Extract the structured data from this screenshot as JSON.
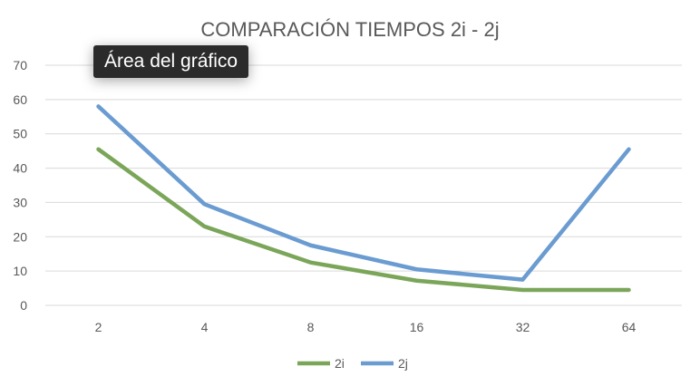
{
  "tooltip": {
    "text": "Área del gráfico"
  },
  "chart_data": {
    "type": "line",
    "title": "COMPARACIÓN TIEMPOS 2i - 2j",
    "categories": [
      "2",
      "4",
      "8",
      "16",
      "32",
      "64"
    ],
    "series": [
      {
        "name": "2i",
        "color": "#7ba65a",
        "values": [
          45.5,
          23,
          12.5,
          7.2,
          4.5,
          4.5
        ]
      },
      {
        "name": "2j",
        "color": "#6a9bd1",
        "values": [
          58,
          29.5,
          17.5,
          10.5,
          7.5,
          45.5
        ]
      }
    ],
    "yticks": [
      "0",
      "10",
      "20",
      "30",
      "40",
      "50",
      "60",
      "70"
    ],
    "ylim": [
      0,
      70
    ],
    "xlabel": "",
    "ylabel": "",
    "grid": true,
    "legend_position": "bottom",
    "gridline_color": "#d9d9d9"
  }
}
